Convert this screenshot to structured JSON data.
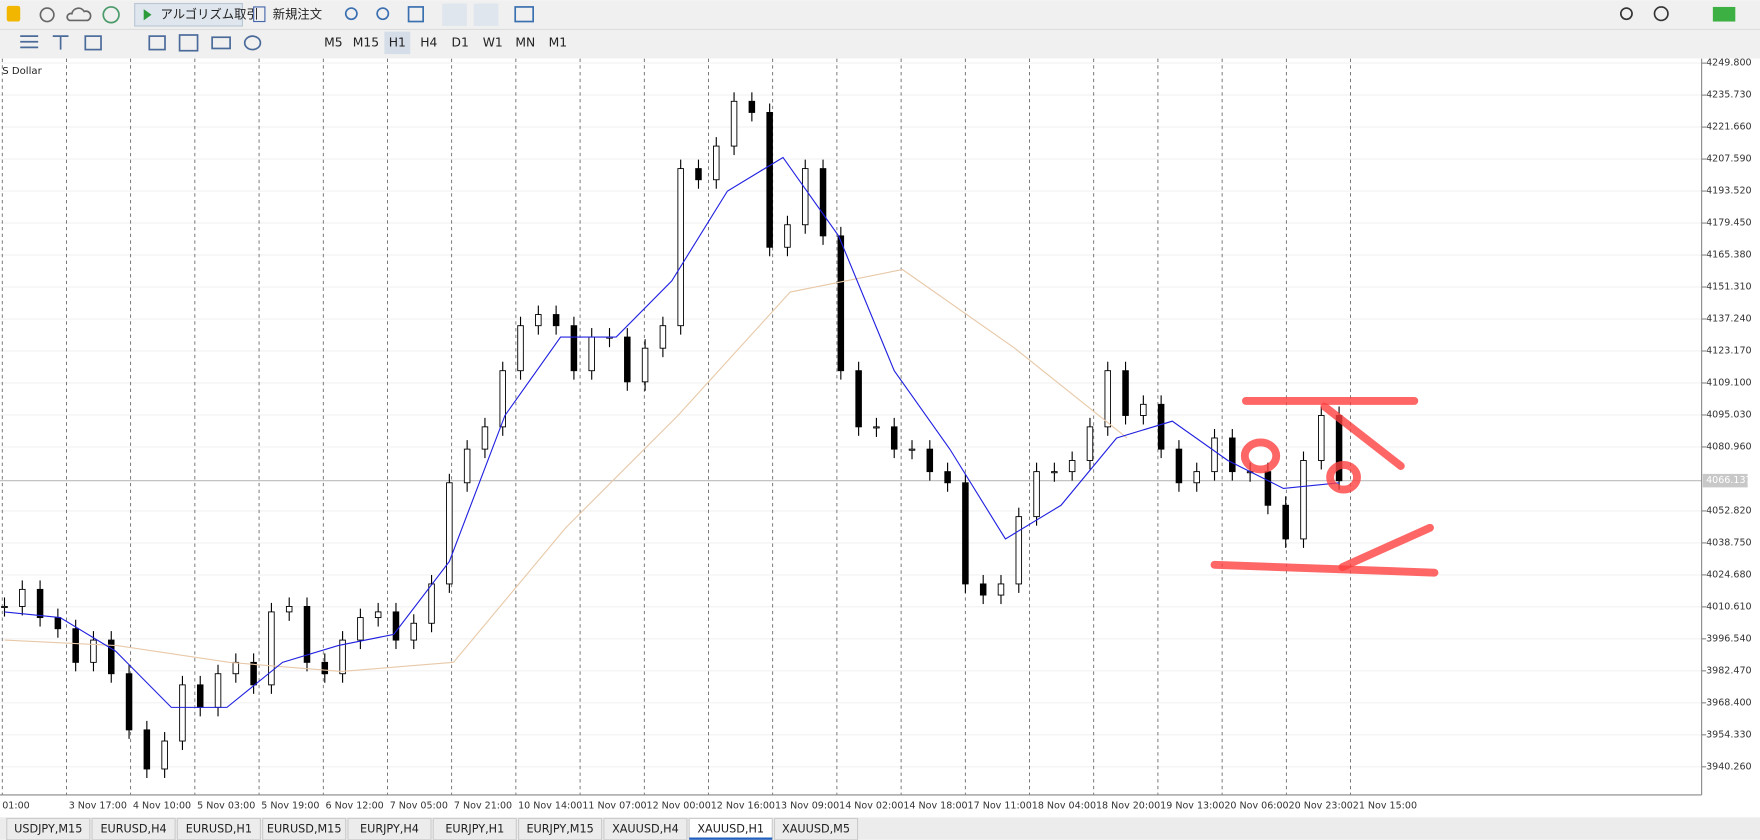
{
  "toolbar": {
    "algo_trading": "アルゴリズム取引",
    "new_order": "新規注文"
  },
  "timeframes": [
    "M5",
    "M15",
    "H1",
    "H4",
    "D1",
    "W1",
    "MN",
    "M1"
  ],
  "active_timeframe": "H1",
  "chart": {
    "symbol_label": "S Dollar",
    "ylim": [
      3927.9,
      4251.8
    ],
    "yticks": [
      {
        "value": 4249.8,
        "label": "4249.800"
      },
      {
        "value": 4235.73,
        "label": "4235.730"
      },
      {
        "value": 4221.66,
        "label": "4221.660"
      },
      {
        "value": 4207.59,
        "label": "4207.590"
      },
      {
        "value": 4193.52,
        "label": "4193.520"
      },
      {
        "value": 4179.45,
        "label": "4179.450"
      },
      {
        "value": 4165.38,
        "label": "4165.380"
      },
      {
        "value": 4151.31,
        "label": "4151.310"
      },
      {
        "value": 4137.24,
        "label": "4137.240"
      },
      {
        "value": 4123.17,
        "label": "4123.170"
      },
      {
        "value": 4109.1,
        "label": "4109.100"
      },
      {
        "value": 4095.03,
        "label": "4095.030"
      },
      {
        "value": 4080.96,
        "label": "4080.960"
      },
      {
        "value": 4052.82,
        "label": "4052.820"
      },
      {
        "value": 4038.75,
        "label": "4038.750"
      },
      {
        "value": 4024.68,
        "label": "4024.680"
      },
      {
        "value": 4010.61,
        "label": "4010.610"
      },
      {
        "value": 3996.54,
        "label": "3996.540"
      },
      {
        "value": 3982.47,
        "label": "3982.470"
      },
      {
        "value": 3968.4,
        "label": "3968.400"
      },
      {
        "value": 3954.33,
        "label": "3954.330"
      },
      {
        "value": 3940.26,
        "label": "3940.260"
      }
    ],
    "current_price": 4066.137,
    "time_labels": [
      "01:00",
      "3 Nov 17:00",
      "4 Nov 10:00",
      "5 Nov 03:00",
      "5 Nov 19:00",
      "6 Nov 12:00",
      "7 Nov 05:00",
      "7 Nov 21:00",
      "10 Nov 14:00",
      "11 Nov 07:00",
      "12 Nov 00:00",
      "12 Nov 16:00",
      "13 Nov 09:00",
      "14 Nov 02:00",
      "14 Nov 18:00",
      "17 Nov 11:00",
      "18 Nov 04:00",
      "18 Nov 20:00",
      "19 Nov 13:00",
      "20 Nov 06:00",
      "20 Nov 23:00",
      "21 Nov 15:00"
    ],
    "closes": [
      4010.8,
      4018.3,
      4005.9,
      4001.0,
      3986.2,
      3996.0,
      3981.2,
      3956.5,
      3939.3,
      3951.6,
      3976.3,
      3966.4,
      3981.2,
      3986.2,
      3976.3,
      4008.4,
      4010.8,
      3986.2,
      3981.2,
      3996.0,
      4005.9,
      4008.4,
      3996.0,
      4003.4,
      4020.7,
      4065.2,
      4080.0,
      4089.8,
      4114.5,
      4134.3,
      4139.2,
      4134.3,
      4114.5,
      4129.3,
      4129.3,
      4109.6,
      4124.4,
      4134.3,
      4203.4,
      4198.5,
      4213.3,
      4233.0,
      4228.1,
      4168.8,
      4178.7,
      4203.4,
      4173.8,
      4114.5,
      4089.8,
      4089.8,
      4080.0,
      4080.0,
      4070.1,
      4065.2,
      4020.7,
      4015.8,
      4020.7,
      4050.3,
      4070.1,
      4070.1,
      4075.0,
      4089.8,
      4114.5,
      4094.8,
      4099.7,
      4080.0,
      4065.2,
      4070.1,
      4084.9,
      4070.1,
      4070.1,
      4055.3,
      4040.5,
      4075.0,
      4094.8,
      4066.1
    ],
    "ma_fast": {
      "color": "#2020e0",
      "values": [
        4008.4,
        4005.9,
        3991.1,
        3966.4,
        3966.4,
        3986.2,
        3993.6,
        3998.5,
        4030.6,
        4094.8,
        4129.3,
        4129.3,
        4154.0,
        4193.5,
        4208.3,
        4173.8,
        4114.5,
        4080.0,
        4040.5,
        4055.3,
        4084.9,
        4092.3,
        4075.0,
        4062.7,
        4065.2
      ]
    },
    "ma_slow": {
      "color": "#e8c9a8",
      "values": [
        3996.0,
        3993.6,
        3986.2,
        3982.2,
        3986.2,
        4045.4,
        4094.8,
        4149.1,
        4159.0,
        4124.4,
        4084.9
      ]
    }
  },
  "tabs": [
    "USDJPY,M15",
    "EURUSD,H4",
    "EURUSD,H1",
    "EURUSD,M15",
    "EURJPY,H4",
    "EURJPY,H1",
    "EURJPY,M15",
    "XAUUSD,H4",
    "XAUUSD,H1",
    "XAUUSD,M5"
  ],
  "active_tab": "XAUUSD,H1"
}
